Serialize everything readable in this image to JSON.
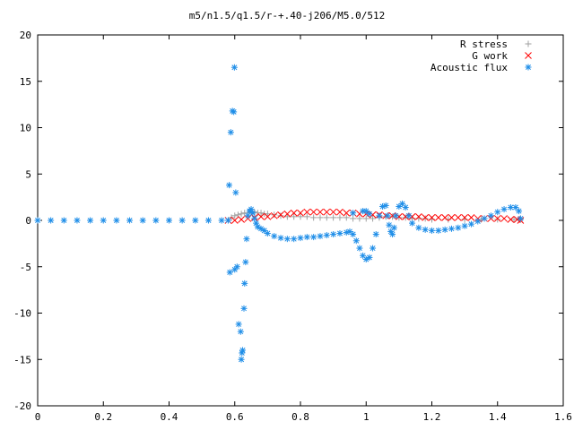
{
  "chart_data": {
    "type": "scatter",
    "title": "m5/n1.5/q1.5/r-+.40-j206/M5.0/512",
    "xlabel": "",
    "ylabel": "",
    "xlim": [
      0,
      1.6
    ],
    "ylim": [
      -20,
      20
    ],
    "x_ticks": [
      0,
      0.2,
      0.4,
      0.6,
      0.8,
      1,
      1.2,
      1.4,
      1.6
    ],
    "x_tick_labels": [
      "0",
      "0.2",
      "0.4",
      "0.6",
      "0.8",
      "1",
      "1.2",
      "1.4",
      "1.6"
    ],
    "y_ticks": [
      -20,
      -15,
      -10,
      -5,
      0,
      5,
      10,
      15,
      20
    ],
    "y_tick_labels": [
      "-20",
      "-15",
      "-10",
      "-5",
      "0",
      "5",
      "10",
      "15",
      "20"
    ],
    "grid": false,
    "legend_position": "top-right",
    "series": [
      {
        "name": "R stress",
        "marker": "plus",
        "color": "#a0a0a0",
        "points": [
          [
            0.58,
            0.0
          ],
          [
            0.59,
            0.3
          ],
          [
            0.6,
            0.5
          ],
          [
            0.61,
            0.6
          ],
          [
            0.62,
            0.7
          ],
          [
            0.63,
            0.8
          ],
          [
            0.64,
            0.8
          ],
          [
            0.65,
            0.9
          ],
          [
            0.66,
            0.9
          ],
          [
            0.67,
            0.8
          ],
          [
            0.68,
            0.8
          ],
          [
            0.69,
            0.7
          ],
          [
            0.7,
            0.7
          ],
          [
            0.72,
            0.6
          ],
          [
            0.74,
            0.5
          ],
          [
            0.76,
            0.4
          ],
          [
            0.78,
            0.4
          ],
          [
            0.8,
            0.4
          ],
          [
            0.82,
            0.4
          ],
          [
            0.84,
            0.3
          ],
          [
            0.86,
            0.3
          ],
          [
            0.88,
            0.3
          ],
          [
            0.9,
            0.3
          ],
          [
            0.92,
            0.3
          ],
          [
            0.94,
            0.3
          ],
          [
            0.96,
            0.2
          ],
          [
            0.98,
            0.2
          ],
          [
            1.0,
            0.2
          ],
          [
            1.02,
            0.2
          ],
          [
            1.04,
            0.3
          ],
          [
            1.06,
            0.4
          ],
          [
            1.08,
            0.4
          ],
          [
            1.1,
            0.3
          ],
          [
            1.12,
            0.3
          ],
          [
            1.14,
            0.2
          ],
          [
            1.16,
            0.2
          ],
          [
            1.18,
            0.2
          ],
          [
            1.2,
            0.1
          ],
          [
            1.25,
            0.1
          ],
          [
            1.3,
            0.1
          ],
          [
            1.35,
            0.1
          ],
          [
            1.4,
            0.1
          ],
          [
            1.45,
            0.1
          ],
          [
            1.47,
            0.1
          ]
        ]
      },
      {
        "name": "G work",
        "marker": "cross",
        "color": "#ff0000",
        "points": [
          [
            0.58,
            0.0
          ],
          [
            0.6,
            0.0
          ],
          [
            0.62,
            0.1
          ],
          [
            0.64,
            0.2
          ],
          [
            0.66,
            0.3
          ],
          [
            0.68,
            0.4
          ],
          [
            0.7,
            0.4
          ],
          [
            0.72,
            0.5
          ],
          [
            0.74,
            0.6
          ],
          [
            0.76,
            0.7
          ],
          [
            0.78,
            0.8
          ],
          [
            0.8,
            0.8
          ],
          [
            0.82,
            0.9
          ],
          [
            0.84,
            0.9
          ],
          [
            0.86,
            0.9
          ],
          [
            0.88,
            0.9
          ],
          [
            0.9,
            0.9
          ],
          [
            0.92,
            0.9
          ],
          [
            0.94,
            0.8
          ],
          [
            0.96,
            0.8
          ],
          [
            0.98,
            0.7
          ],
          [
            1.0,
            0.7
          ],
          [
            1.02,
            0.6
          ],
          [
            1.04,
            0.6
          ],
          [
            1.06,
            0.5
          ],
          [
            1.08,
            0.5
          ],
          [
            1.1,
            0.4
          ],
          [
            1.12,
            0.4
          ],
          [
            1.14,
            0.4
          ],
          [
            1.16,
            0.4
          ],
          [
            1.18,
            0.3
          ],
          [
            1.2,
            0.3
          ],
          [
            1.22,
            0.3
          ],
          [
            1.24,
            0.3
          ],
          [
            1.26,
            0.3
          ],
          [
            1.28,
            0.3
          ],
          [
            1.3,
            0.3
          ],
          [
            1.32,
            0.3
          ],
          [
            1.34,
            0.2
          ],
          [
            1.36,
            0.2
          ],
          [
            1.38,
            0.2
          ],
          [
            1.4,
            0.2
          ],
          [
            1.42,
            0.2
          ],
          [
            1.44,
            0.1
          ],
          [
            1.46,
            0.1
          ],
          [
            1.47,
            0.0
          ]
        ]
      },
      {
        "name": "Acoustic flux",
        "marker": "star",
        "color": "#1f8ee8",
        "points": [
          [
            0.0,
            0.0
          ],
          [
            0.04,
            0.0
          ],
          [
            0.08,
            0.0
          ],
          [
            0.12,
            0.0
          ],
          [
            0.16,
            0.0
          ],
          [
            0.2,
            0.0
          ],
          [
            0.24,
            0.0
          ],
          [
            0.28,
            0.0
          ],
          [
            0.32,
            0.0
          ],
          [
            0.36,
            0.0
          ],
          [
            0.4,
            0.0
          ],
          [
            0.44,
            0.0
          ],
          [
            0.48,
            0.0
          ],
          [
            0.52,
            0.0
          ],
          [
            0.56,
            0.0
          ],
          [
            0.58,
            0.0
          ],
          [
            0.583,
            3.8
          ],
          [
            0.588,
            9.5
          ],
          [
            0.593,
            11.8
          ],
          [
            0.597,
            11.7
          ],
          [
            0.599,
            16.5
          ],
          [
            0.603,
            3.0
          ],
          [
            0.585,
            -5.6
          ],
          [
            0.6,
            -5.3
          ],
          [
            0.607,
            -5.0
          ],
          [
            0.612,
            -11.2
          ],
          [
            0.618,
            -12.0
          ],
          [
            0.622,
            -14.3
          ],
          [
            0.62,
            -15.0
          ],
          [
            0.624,
            -14.0
          ],
          [
            0.628,
            -9.5
          ],
          [
            0.63,
            -6.8
          ],
          [
            0.633,
            -4.5
          ],
          [
            0.636,
            -2.0
          ],
          [
            0.64,
            0.5
          ],
          [
            0.645,
            1.0
          ],
          [
            0.65,
            1.2
          ],
          [
            0.655,
            0.8
          ],
          [
            0.66,
            0.2
          ],
          [
            0.665,
            -0.3
          ],
          [
            0.67,
            -0.7
          ],
          [
            0.68,
            -0.9
          ],
          [
            0.69,
            -1.1
          ],
          [
            0.7,
            -1.4
          ],
          [
            0.72,
            -1.7
          ],
          [
            0.74,
            -1.9
          ],
          [
            0.76,
            -2.0
          ],
          [
            0.78,
            -2.0
          ],
          [
            0.8,
            -1.9
          ],
          [
            0.82,
            -1.8
          ],
          [
            0.84,
            -1.8
          ],
          [
            0.86,
            -1.7
          ],
          [
            0.88,
            -1.6
          ],
          [
            0.9,
            -1.5
          ],
          [
            0.92,
            -1.4
          ],
          [
            0.94,
            -1.3
          ],
          [
            0.95,
            -1.2
          ],
          [
            0.96,
            -1.5
          ],
          [
            0.97,
            -2.2
          ],
          [
            0.98,
            -3.0
          ],
          [
            0.99,
            -3.8
          ],
          [
            1.0,
            -4.2
          ],
          [
            1.01,
            -4.0
          ],
          [
            1.02,
            -3.0
          ],
          [
            1.03,
            -1.5
          ],
          [
            1.04,
            0.5
          ],
          [
            1.05,
            1.5
          ],
          [
            1.06,
            1.6
          ],
          [
            1.065,
            0.5
          ],
          [
            1.07,
            -0.5
          ],
          [
            1.075,
            -1.2
          ],
          [
            1.08,
            -1.5
          ],
          [
            1.085,
            -0.8
          ],
          [
            1.09,
            0.5
          ],
          [
            1.1,
            1.5
          ],
          [
            1.11,
            1.8
          ],
          [
            1.12,
            1.4
          ],
          [
            1.13,
            0.5
          ],
          [
            1.14,
            -0.3
          ],
          [
            1.16,
            -0.8
          ],
          [
            1.18,
            -1.0
          ],
          [
            1.2,
            -1.1
          ],
          [
            1.22,
            -1.1
          ],
          [
            1.24,
            -1.0
          ],
          [
            1.26,
            -0.9
          ],
          [
            1.28,
            -0.8
          ],
          [
            1.3,
            -0.6
          ],
          [
            1.32,
            -0.4
          ],
          [
            1.34,
            -0.1
          ],
          [
            1.36,
            0.2
          ],
          [
            1.38,
            0.5
          ],
          [
            1.4,
            0.9
          ],
          [
            1.42,
            1.2
          ],
          [
            1.44,
            1.4
          ],
          [
            1.455,
            1.4
          ],
          [
            1.465,
            1.0
          ],
          [
            1.47,
            0.2
          ],
          [
            0.96,
            0.8
          ],
          [
            0.99,
            1.0
          ],
          [
            1.0,
            1.0
          ],
          [
            1.01,
            0.7
          ]
        ]
      }
    ]
  }
}
